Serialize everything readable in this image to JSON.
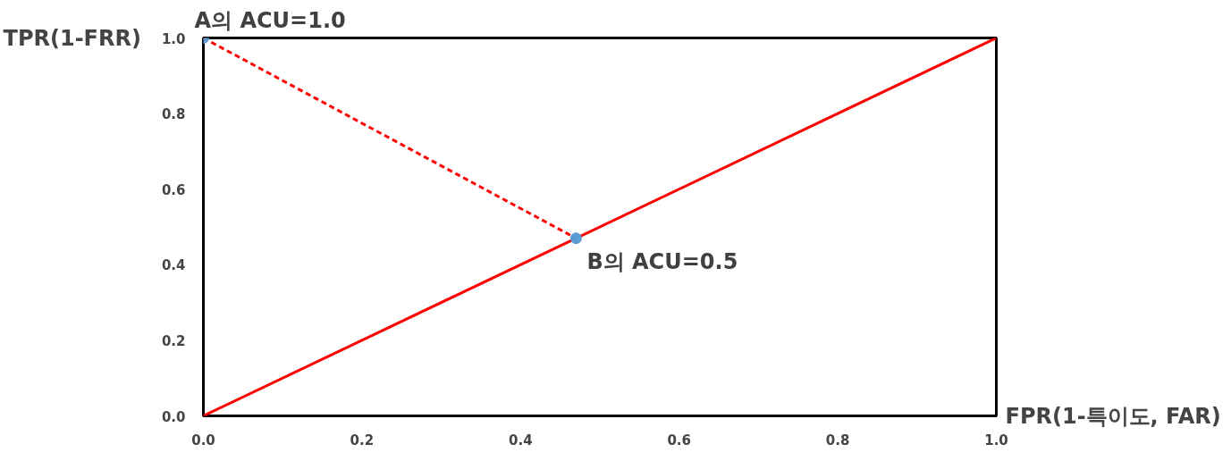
{
  "chart_data": {
    "type": "line",
    "xlabel": "FPR(1-특이도,  FAR)",
    "ylabel": "TPR(1-FRR)",
    "xlim": [
      0,
      1
    ],
    "ylim": [
      0,
      1
    ],
    "xticks": [
      {
        "value": 0,
        "label": "0.0"
      },
      0.2,
      0.4,
      0.6,
      0.8,
      {
        "value": 1,
        "label": "1.0"
      }
    ],
    "yticks": [
      {
        "value": 0,
        "label": "0.0"
      },
      0.2,
      0.4,
      0.6,
      0.8,
      {
        "value": 1,
        "label": "1.0"
      }
    ],
    "grid": false,
    "series": [
      {
        "type": "line",
        "color": "#ff0000",
        "x": [
          0,
          1
        ],
        "values": [
          0,
          1
        ],
        "line_style": "solid",
        "marker": "none"
      },
      {
        "type": "line",
        "color": "#ff0000",
        "x": [
          0,
          0.47
        ],
        "values": [
          1,
          0.47
        ],
        "line_style": "dashed",
        "marker": "none"
      },
      {
        "type": "scatter",
        "color": "#5b9bd5",
        "x": [
          0,
          0.47
        ],
        "values": [
          1,
          0.47
        ],
        "marker": "circle"
      }
    ],
    "annotations": [
      "A의 ACU=1.0",
      {
        "text": "B의 ACU=0.5",
        "x": 0.47,
        "y": 0.47
      }
    ]
  }
}
